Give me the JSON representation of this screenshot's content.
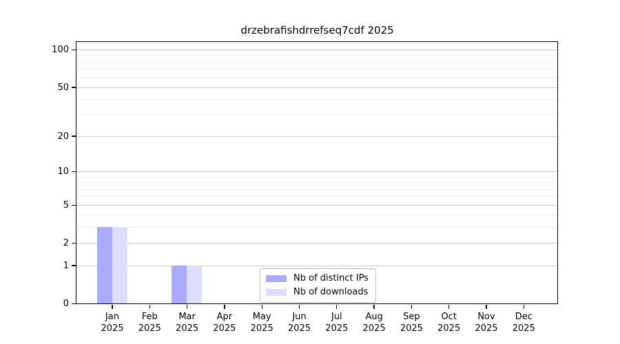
{
  "title": "drzebrafishdrrefseq7cdf 2025",
  "chart_data": {
    "type": "bar",
    "title": "drzebrafishdrrefseq7cdf 2025",
    "categories": [
      "Jan",
      "Feb",
      "Mar",
      "Apr",
      "May",
      "Jun",
      "Jul",
      "Aug",
      "Sep",
      "Oct",
      "Nov",
      "Dec"
    ],
    "year_label": "2025",
    "series": [
      {
        "name": "Nb of distinct IPs",
        "color": "#aaaaff",
        "values": [
          3,
          0,
          1,
          0,
          0,
          0,
          0,
          0,
          0,
          0,
          0,
          0
        ]
      },
      {
        "name": "Nb of downloads",
        "color": "#ddddff",
        "values": [
          3,
          0,
          1,
          0,
          0,
          0,
          0,
          0,
          0,
          0,
          0,
          0
        ]
      }
    ],
    "yscale": "log1p",
    "ylim": [
      0,
      118
    ],
    "yticks": [
      0,
      1,
      2,
      5,
      10,
      20,
      50,
      100
    ],
    "minor_gridlines": [
      3,
      4,
      6,
      7,
      8,
      9,
      30,
      40,
      60,
      70,
      80,
      90
    ],
    "grid": true,
    "legend_position": "bottom-center",
    "xlabel": "",
    "ylabel": "",
    "colors": {
      "major_grid": "#c9c9c9",
      "minor_grid": "#ededed",
      "axis": "#000000",
      "legend_border": "#bdbdbd",
      "background": "#ffffff",
      "text": "#000000"
    }
  }
}
